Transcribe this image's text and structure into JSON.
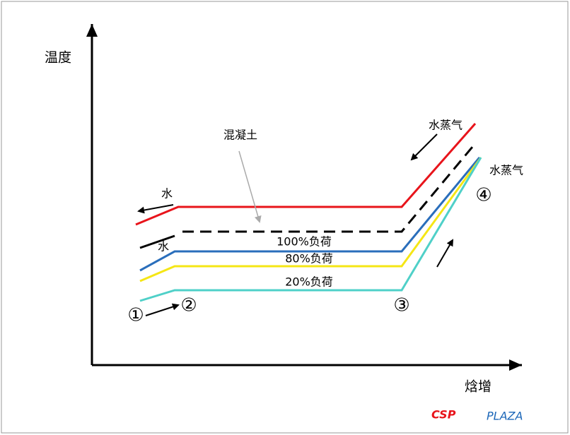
{
  "axes": {
    "y_label": "温度",
    "x_label": "焓增"
  },
  "annotations": {
    "concrete": "混凝土",
    "steam_top": "水蒸气",
    "steam_right": "水蒸气",
    "water_top": "水",
    "water_mid": "水"
  },
  "curves": {
    "load_100": "100%负荷",
    "load_80": "80%负荷",
    "load_20": "20%负荷"
  },
  "points": [
    "①",
    "②",
    "③",
    "④"
  ],
  "logo": {
    "part1": "CSP",
    "part2": "PLAZA"
  }
}
